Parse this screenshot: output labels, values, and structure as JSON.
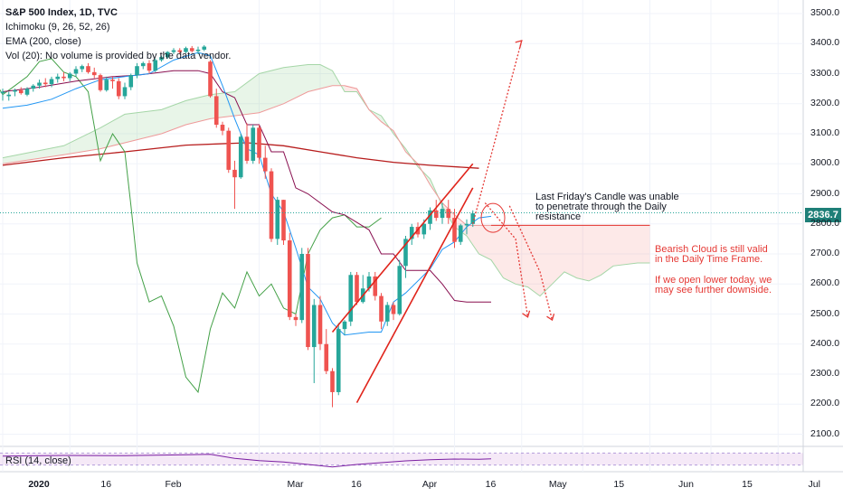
{
  "legend": {
    "title": "S&P 500 Index, 1D, TVC",
    "ichimoku": "Ichimoku (9, 26, 52, 26)",
    "ema": "EMA (200, close)",
    "vol": "Vol (20): No volume is provided by the data vendor."
  },
  "rsi_label": "RSI (14, close)",
  "annotations": {
    "friday_line1": "Last Friday's Candle was unable",
    "friday_line2": "to penetrate through the Daily",
    "friday_line3": "resistance",
    "bearish_line1": "Bearish Cloud is still valid",
    "bearish_line2": "in the Daily Time Frame.",
    "open_line1": "If we open lower today, we",
    "open_line2": "may see further downside."
  },
  "last_price": "2836.7",
  "colors": {
    "bull": "#26a69a",
    "bear": "#ef5350",
    "tenkan": "#2196f3",
    "kijun": "#880e4f",
    "lagging": "#43a047",
    "span_a": "#a5d6a7",
    "span_b": "#ef9a9a",
    "ema": "#b71c1c",
    "annotation": "#e53935",
    "rsi": "#7b1fa2"
  },
  "chart_data": {
    "type": "candlestick",
    "title": "S&P 500 Index, 1D, TVC",
    "y_ticks": [
      3500,
      3400,
      3300,
      3200,
      3100,
      3000,
      2900,
      2800,
      2700,
      2600,
      2500,
      2400,
      2300,
      2200,
      2100
    ],
    "y_tick_labels": [
      "3500.0",
      "3400.0",
      "3300.0",
      "3200.0",
      "3100.0",
      "3000.0",
      "2900.0",
      "2800.0",
      "2700.0",
      "2600.0",
      "2500.0",
      "2400.0",
      "2300.0",
      "2200.0",
      "2100.0"
    ],
    "ylim": [
      2060,
      3560
    ],
    "x_ticks": [
      {
        "label": "2020",
        "t": 0,
        "bold": true
      },
      {
        "label": "16",
        "t": 11
      },
      {
        "label": "Feb",
        "t": 22
      },
      {
        "label": "Mar",
        "t": 42
      },
      {
        "label": "16",
        "t": 52
      },
      {
        "label": "Apr",
        "t": 64
      },
      {
        "label": "16",
        "t": 74
      },
      {
        "label": "May",
        "t": 85
      },
      {
        "label": "15",
        "t": 95
      },
      {
        "label": "Jun",
        "t": 106
      },
      {
        "label": "15",
        "t": 116
      },
      {
        "label": "Jul",
        "t": 127
      }
    ],
    "candles": [
      {
        "o": 3235,
        "h": 3250,
        "l": 3210,
        "c": 3240
      },
      {
        "o": 3225,
        "h": 3240,
        "l": 3210,
        "c": 3230
      },
      {
        "o": 3240,
        "h": 3250,
        "l": 3225,
        "c": 3245
      },
      {
        "o": 3245,
        "h": 3255,
        "l": 3230,
        "c": 3235
      },
      {
        "o": 3230,
        "h": 3255,
        "l": 3225,
        "c": 3250
      },
      {
        "o": 3250,
        "h": 3265,
        "l": 3240,
        "c": 3260
      },
      {
        "o": 3260,
        "h": 3280,
        "l": 3250,
        "c": 3270
      },
      {
        "o": 3270,
        "h": 3285,
        "l": 3255,
        "c": 3265
      },
      {
        "o": 3265,
        "h": 3290,
        "l": 3255,
        "c": 3282
      },
      {
        "o": 3282,
        "h": 3300,
        "l": 3270,
        "c": 3290
      },
      {
        "o": 3290,
        "h": 3305,
        "l": 3275,
        "c": 3285
      },
      {
        "o": 3285,
        "h": 3305,
        "l": 3275,
        "c": 3300
      },
      {
        "o": 3300,
        "h": 3325,
        "l": 3290,
        "c": 3315
      },
      {
        "o": 3315,
        "h": 3330,
        "l": 3305,
        "c": 3325
      },
      {
        "o": 3325,
        "h": 3335,
        "l": 3300,
        "c": 3305
      },
      {
        "o": 3305,
        "h": 3320,
        "l": 3285,
        "c": 3295
      },
      {
        "o": 3295,
        "h": 3300,
        "l": 3240,
        "c": 3245
      },
      {
        "o": 3245,
        "h": 3290,
        "l": 3240,
        "c": 3280
      },
      {
        "o": 3280,
        "h": 3290,
        "l": 3250,
        "c": 3275
      },
      {
        "o": 3275,
        "h": 3285,
        "l": 3215,
        "c": 3225
      },
      {
        "o": 3225,
        "h": 3270,
        "l": 3215,
        "c": 3255
      },
      {
        "o": 3255,
        "h": 3300,
        "l": 3245,
        "c": 3295
      },
      {
        "o": 3295,
        "h": 3335,
        "l": 3285,
        "c": 3325
      },
      {
        "o": 3325,
        "h": 3340,
        "l": 3315,
        "c": 3335
      },
      {
        "o": 3335,
        "h": 3345,
        "l": 3300,
        "c": 3310
      },
      {
        "o": 3310,
        "h": 3350,
        "l": 3305,
        "c": 3345
      },
      {
        "o": 3345,
        "h": 3360,
        "l": 3340,
        "c": 3355
      },
      {
        "o": 3355,
        "h": 3375,
        "l": 3350,
        "c": 3372
      },
      {
        "o": 3372,
        "h": 3385,
        "l": 3365,
        "c": 3378
      },
      {
        "o": 3378,
        "h": 3385,
        "l": 3365,
        "c": 3372
      },
      {
        "o": 3372,
        "h": 3390,
        "l": 3368,
        "c": 3385
      },
      {
        "o": 3385,
        "h": 3392,
        "l": 3370,
        "c": 3375
      },
      {
        "o": 3375,
        "h": 3390,
        "l": 3365,
        "c": 3380
      },
      {
        "o": 3380,
        "h": 3395,
        "l": 3375,
        "c": 3390
      },
      {
        "o": 3340,
        "h": 3345,
        "l": 3220,
        "c": 3225
      },
      {
        "o": 3225,
        "h": 3250,
        "l": 3120,
        "c": 3130
      },
      {
        "o": 3130,
        "h": 3140,
        "l": 3095,
        "c": 3110
      },
      {
        "o": 3110,
        "h": 3120,
        "l": 2970,
        "c": 2980
      },
      {
        "o": 2980,
        "h": 3010,
        "l": 2850,
        "c": 2955
      },
      {
        "o": 2955,
        "h": 3100,
        "l": 2950,
        "c": 3090
      },
      {
        "o": 3090,
        "h": 3135,
        "l": 3000,
        "c": 3010
      },
      {
        "o": 3010,
        "h": 3130,
        "l": 3000,
        "c": 3120
      },
      {
        "o": 3120,
        "h": 3130,
        "l": 3000,
        "c": 3020
      },
      {
        "o": 3020,
        "h": 3060,
        "l": 2950,
        "c": 2975
      },
      {
        "o": 2975,
        "h": 2985,
        "l": 2740,
        "c": 2750
      },
      {
        "o": 2750,
        "h": 2890,
        "l": 2730,
        "c": 2880
      },
      {
        "o": 2880,
        "h": 2880,
        "l": 2730,
        "c": 2745
      },
      {
        "o": 2745,
        "h": 2770,
        "l": 2480,
        "c": 2490
      },
      {
        "o": 2490,
        "h": 2500,
        "l": 2460,
        "c": 2480
      },
      {
        "o": 2480,
        "h": 2720,
        "l": 2470,
        "c": 2700
      },
      {
        "o": 2700,
        "h": 2720,
        "l": 2380,
        "c": 2390
      },
      {
        "o": 2390,
        "h": 2550,
        "l": 2270,
        "c": 2530
      },
      {
        "o": 2530,
        "h": 2560,
        "l": 2380,
        "c": 2400
      },
      {
        "o": 2400,
        "h": 2450,
        "l": 2300,
        "c": 2310
      },
      {
        "o": 2310,
        "h": 2320,
        "l": 2190,
        "c": 2240
      },
      {
        "o": 2240,
        "h": 2470,
        "l": 2230,
        "c": 2450
      },
      {
        "o": 2450,
        "h": 2480,
        "l": 2430,
        "c": 2475
      },
      {
        "o": 2475,
        "h": 2640,
        "l": 2460,
        "c": 2630
      },
      {
        "o": 2630,
        "h": 2640,
        "l": 2530,
        "c": 2540
      },
      {
        "o": 2540,
        "h": 2630,
        "l": 2535,
        "c": 2585
      },
      {
        "o": 2585,
        "h": 2640,
        "l": 2575,
        "c": 2625
      },
      {
        "o": 2625,
        "h": 2640,
        "l": 2545,
        "c": 2560
      },
      {
        "o": 2560,
        "h": 2570,
        "l": 2450,
        "c": 2475
      },
      {
        "o": 2475,
        "h": 2540,
        "l": 2460,
        "c": 2530
      },
      {
        "o": 2530,
        "h": 2540,
        "l": 2480,
        "c": 2500
      },
      {
        "o": 2500,
        "h": 2680,
        "l": 2495,
        "c": 2660
      },
      {
        "o": 2660,
        "h": 2760,
        "l": 2620,
        "c": 2750
      },
      {
        "o": 2750,
        "h": 2800,
        "l": 2730,
        "c": 2790
      },
      {
        "o": 2790,
        "h": 2805,
        "l": 2755,
        "c": 2765
      },
      {
        "o": 2765,
        "h": 2815,
        "l": 2750,
        "c": 2800
      },
      {
        "o": 2800,
        "h": 2855,
        "l": 2780,
        "c": 2845
      },
      {
        "o": 2845,
        "h": 2880,
        "l": 2810,
        "c": 2820
      },
      {
        "o": 2820,
        "h": 2870,
        "l": 2800,
        "c": 2850
      },
      {
        "o": 2850,
        "h": 2880,
        "l": 2800,
        "c": 2820
      },
      {
        "o": 2820,
        "h": 2850,
        "l": 2720,
        "c": 2740
      },
      {
        "o": 2740,
        "h": 2800,
        "l": 2730,
        "c": 2795
      },
      {
        "o": 2795,
        "h": 2815,
        "l": 2765,
        "c": 2800
      },
      {
        "o": 2800,
        "h": 2845,
        "l": 2790,
        "c": 2835
      }
    ],
    "tenkan": [
      [
        0,
        3185
      ],
      [
        4,
        3195
      ],
      [
        8,
        3215
      ],
      [
        12,
        3250
      ],
      [
        16,
        3280
      ],
      [
        20,
        3290
      ],
      [
        24,
        3300
      ],
      [
        28,
        3345
      ],
      [
        32,
        3370
      ],
      [
        34,
        3360
      ],
      [
        36,
        3260
      ],
      [
        38,
        3150
      ],
      [
        40,
        3050
      ],
      [
        42,
        3030
      ],
      [
        44,
        2900
      ],
      [
        46,
        2840
      ],
      [
        48,
        2720
      ],
      [
        50,
        2590
      ],
      [
        52,
        2550
      ],
      [
        54,
        2470
      ],
      [
        56,
        2430
      ],
      [
        60,
        2440
      ],
      [
        62,
        2440
      ],
      [
        64,
        2540
      ],
      [
        66,
        2570
      ],
      [
        70,
        2650
      ],
      [
        72,
        2715
      ],
      [
        74,
        2740
      ],
      [
        76,
        2790
      ],
      [
        78,
        2820
      ],
      [
        80,
        2825
      ]
    ],
    "kijun": [
      [
        0,
        3240
      ],
      [
        6,
        3255
      ],
      [
        12,
        3275
      ],
      [
        18,
        3290
      ],
      [
        22,
        3295
      ],
      [
        28,
        3310
      ],
      [
        32,
        3310
      ],
      [
        34,
        3300
      ],
      [
        36,
        3240
      ],
      [
        38,
        3220
      ],
      [
        40,
        3130
      ],
      [
        42,
        3130
      ],
      [
        44,
        3040
      ],
      [
        46,
        3040
      ],
      [
        48,
        2920
      ],
      [
        50,
        2900
      ],
      [
        54,
        2840
      ],
      [
        56,
        2830
      ],
      [
        60,
        2780
      ],
      [
        62,
        2700
      ],
      [
        64,
        2700
      ],
      [
        66,
        2645
      ],
      [
        70,
        2645
      ],
      [
        72,
        2600
      ],
      [
        74,
        2545
      ],
      [
        76,
        2540
      ],
      [
        80,
        2540
      ]
    ],
    "span_a": [
      [
        0,
        3020
      ],
      [
        10,
        3060
      ],
      [
        16,
        3120
      ],
      [
        20,
        3165
      ],
      [
        26,
        3180
      ],
      [
        30,
        3210
      ],
      [
        34,
        3230
      ],
      [
        38,
        3240
      ],
      [
        42,
        3300
      ],
      [
        46,
        3320
      ],
      [
        50,
        3330
      ],
      [
        52,
        3330
      ],
      [
        54,
        3310
      ],
      [
        56,
        3240
      ],
      [
        58,
        3240
      ],
      [
        60,
        3180
      ],
      [
        62,
        3160
      ],
      [
        64,
        3100
      ],
      [
        66,
        3050
      ],
      [
        68,
        2990
      ],
      [
        70,
        2950
      ],
      [
        72,
        2860
      ],
      [
        74,
        2790
      ],
      [
        76,
        2760
      ],
      [
        78,
        2700
      ],
      [
        80,
        2680
      ],
      [
        82,
        2620
      ],
      [
        84,
        2600
      ],
      [
        86,
        2590
      ],
      [
        88,
        2560
      ],
      [
        90,
        2600
      ],
      [
        92,
        2640
      ],
      [
        94,
        2620
      ],
      [
        96,
        2610
      ],
      [
        98,
        2630
      ],
      [
        100,
        2660
      ],
      [
        104,
        2670
      ],
      [
        106,
        2670
      ]
    ],
    "span_b": [
      [
        0,
        3000
      ],
      [
        10,
        3030
      ],
      [
        16,
        3050
      ],
      [
        20,
        3070
      ],
      [
        26,
        3100
      ],
      [
        30,
        3130
      ],
      [
        34,
        3150
      ],
      [
        38,
        3160
      ],
      [
        42,
        3170
      ],
      [
        46,
        3200
      ],
      [
        50,
        3240
      ],
      [
        54,
        3260
      ],
      [
        56,
        3260
      ],
      [
        58,
        3250
      ],
      [
        60,
        3180
      ],
      [
        62,
        3140
      ],
      [
        64,
        3110
      ],
      [
        66,
        3040
      ],
      [
        68,
        3000
      ],
      [
        70,
        2930
      ],
      [
        72,
        2870
      ],
      [
        74,
        2830
      ],
      [
        76,
        2795
      ],
      [
        80,
        2795
      ],
      [
        90,
        2795
      ],
      [
        100,
        2795
      ],
      [
        106,
        2795
      ]
    ],
    "lagging": [
      [
        -2,
        3300
      ],
      [
        0,
        3230
      ],
      [
        2,
        3260
      ],
      [
        4,
        3290
      ],
      [
        6,
        3340
      ],
      [
        8,
        3350
      ],
      [
        10,
        3305
      ],
      [
        12,
        3290
      ],
      [
        14,
        3240
      ],
      [
        16,
        3010
      ],
      [
        18,
        3100
      ],
      [
        20,
        3040
      ],
      [
        21,
        2860
      ],
      [
        22,
        2670
      ],
      [
        24,
        2540
      ],
      [
        26,
        2560
      ],
      [
        28,
        2460
      ],
      [
        30,
        2290
      ],
      [
        32,
        2240
      ],
      [
        34,
        2450
      ],
      [
        36,
        2570
      ],
      [
        38,
        2520
      ],
      [
        40,
        2640
      ],
      [
        42,
        2560
      ],
      [
        44,
        2600
      ],
      [
        46,
        2520
      ],
      [
        48,
        2500
      ],
      [
        50,
        2700
      ],
      [
        52,
        2780
      ],
      [
        54,
        2820
      ],
      [
        56,
        2830
      ],
      [
        58,
        2790
      ],
      [
        60,
        2790
      ],
      [
        62,
        2820
      ]
    ],
    "ema": [
      [
        0,
        2995
      ],
      [
        10,
        3020
      ],
      [
        20,
        3040
      ],
      [
        30,
        3062
      ],
      [
        40,
        3070
      ],
      [
        46,
        3060
      ],
      [
        52,
        3040
      ],
      [
        58,
        3020
      ],
      [
        64,
        3005
      ],
      [
        70,
        2995
      ],
      [
        78,
        2985
      ]
    ],
    "rsi": [
      [
        0,
        60
      ],
      [
        10,
        62
      ],
      [
        20,
        61
      ],
      [
        30,
        64
      ],
      [
        34,
        66
      ],
      [
        38,
        52
      ],
      [
        42,
        45
      ],
      [
        46,
        40
      ],
      [
        50,
        32
      ],
      [
        54,
        24
      ],
      [
        58,
        32
      ],
      [
        62,
        38
      ],
      [
        66,
        44
      ],
      [
        70,
        48
      ],
      [
        74,
        50
      ],
      [
        78,
        49
      ],
      [
        80,
        51
      ]
    ],
    "channel_lines": [
      [
        [
          54,
          2440
        ],
        [
          77,
          3000
        ]
      ],
      [
        [
          58,
          2205
        ],
        [
          77,
          2920
        ]
      ]
    ],
    "projection_up": [
      [
        77,
        2800
      ],
      [
        85,
        3410
      ]
    ],
    "projection_down": [
      [
        [
          79,
          2870
        ],
        [
          84,
          2750
        ],
        [
          86,
          2490
        ]
      ],
      [
        [
          83,
          2860
        ],
        [
          88,
          2640
        ],
        [
          90,
          2480
        ]
      ]
    ],
    "resistance": [
      [
        80,
        2795
      ],
      [
        106,
        2795
      ]
    ]
  }
}
